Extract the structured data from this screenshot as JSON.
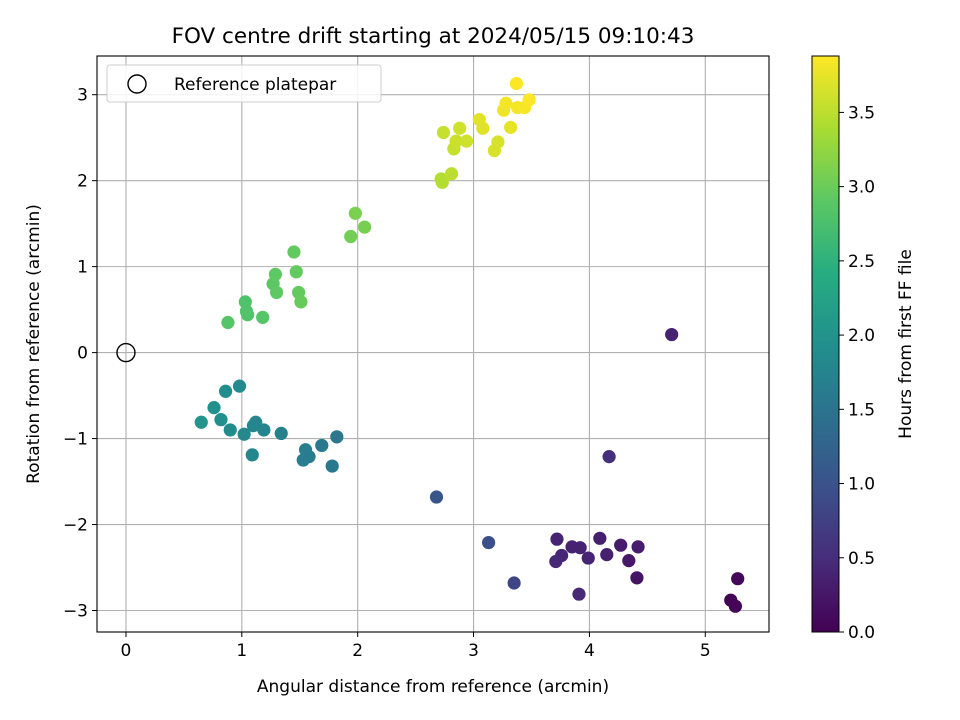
{
  "chart_data": {
    "type": "scatter",
    "title": "FOV centre drift starting at 2024/05/15 09:10:43",
    "xlabel": "Angular distance from reference (arcmin)",
    "ylabel": "Rotation from reference (arcmin)",
    "xlim": [
      -0.25,
      5.55
    ],
    "ylim": [
      -3.25,
      3.45
    ],
    "xticks": [
      0,
      1,
      2,
      3,
      4,
      5
    ],
    "yticks": [
      -3,
      -2,
      -1,
      0,
      1,
      2,
      3
    ],
    "xtick_labels": [
      "0",
      "1",
      "2",
      "3",
      "4",
      "5"
    ],
    "ytick_labels": [
      "−3",
      "−2",
      "−1",
      "0",
      "1",
      "2",
      "3"
    ],
    "grid": true,
    "legend": {
      "position": "top-left",
      "entries": [
        {
          "label": "Reference platepar",
          "marker": "open-circle",
          "color": "#000000"
        }
      ]
    },
    "reference_point": {
      "x": 0,
      "y": 0
    },
    "colorbar": {
      "label": "Hours from first FF file",
      "colormap": "viridis",
      "min": 0.0,
      "max": 3.88,
      "ticks": [
        0.0,
        0.5,
        1.0,
        1.5,
        2.0,
        2.5,
        3.0,
        3.5
      ],
      "tick_labels": [
        "0.0",
        "0.5",
        "1.0",
        "1.5",
        "2.0",
        "2.5",
        "3.0",
        "3.5"
      ]
    },
    "points": [
      {
        "x": 5.22,
        "y": -2.88,
        "c": 0.03
      },
      {
        "x": 5.26,
        "y": -2.95,
        "c": 0.05
      },
      {
        "x": 5.28,
        "y": -2.63,
        "c": 0.07
      },
      {
        "x": 4.71,
        "y": 0.21,
        "c": 0.38
      },
      {
        "x": 4.42,
        "y": -2.26,
        "c": 0.3
      },
      {
        "x": 4.41,
        "y": -2.62,
        "c": 0.22
      },
      {
        "x": 4.34,
        "y": -2.42,
        "c": 0.26
      },
      {
        "x": 4.27,
        "y": -2.24,
        "c": 0.32
      },
      {
        "x": 4.17,
        "y": -1.21,
        "c": 0.52
      },
      {
        "x": 4.15,
        "y": -2.35,
        "c": 0.36
      },
      {
        "x": 4.09,
        "y": -2.16,
        "c": 0.35
      },
      {
        "x": 3.99,
        "y": -2.39,
        "c": 0.4
      },
      {
        "x": 3.92,
        "y": -2.27,
        "c": 0.4
      },
      {
        "x": 3.85,
        "y": -2.26,
        "c": 0.38
      },
      {
        "x": 3.91,
        "y": -2.81,
        "c": 0.45
      },
      {
        "x": 3.76,
        "y": -2.36,
        "c": 0.42
      },
      {
        "x": 3.72,
        "y": -2.17,
        "c": 0.4
      },
      {
        "x": 3.71,
        "y": -2.43,
        "c": 0.45
      },
      {
        "x": 3.35,
        "y": -2.68,
        "c": 0.82
      },
      {
        "x": 3.13,
        "y": -2.21,
        "c": 0.95
      },
      {
        "x": 2.68,
        "y": -1.68,
        "c": 1.05
      },
      {
        "x": 1.82,
        "y": -0.98,
        "c": 1.55
      },
      {
        "x": 1.78,
        "y": -1.32,
        "c": 1.58
      },
      {
        "x": 1.69,
        "y": -1.08,
        "c": 1.6
      },
      {
        "x": 1.58,
        "y": -1.21,
        "c": 1.62
      },
      {
        "x": 1.55,
        "y": -1.13,
        "c": 1.65
      },
      {
        "x": 1.53,
        "y": -1.25,
        "c": 1.64
      },
      {
        "x": 1.34,
        "y": -0.94,
        "c": 1.7
      },
      {
        "x": 1.19,
        "y": -0.9,
        "c": 1.75
      },
      {
        "x": 1.12,
        "y": -0.81,
        "c": 1.78
      },
      {
        "x": 1.1,
        "y": -0.85,
        "c": 1.8
      },
      {
        "x": 1.09,
        "y": -1.19,
        "c": 1.8
      },
      {
        "x": 1.02,
        "y": -0.95,
        "c": 1.82
      },
      {
        "x": 0.98,
        "y": -0.39,
        "c": 1.85
      },
      {
        "x": 0.9,
        "y": -0.9,
        "c": 1.88
      },
      {
        "x": 0.86,
        "y": -0.45,
        "c": 1.9
      },
      {
        "x": 0.82,
        "y": -0.78,
        "c": 1.92
      },
      {
        "x": 0.76,
        "y": -0.64,
        "c": 1.95
      },
      {
        "x": 0.65,
        "y": -0.81,
        "c": 2.0
      },
      {
        "x": 0.88,
        "y": 0.35,
        "c": 2.85
      },
      {
        "x": 1.03,
        "y": 0.59,
        "c": 2.8
      },
      {
        "x": 1.04,
        "y": 0.48,
        "c": 2.8
      },
      {
        "x": 1.05,
        "y": 0.44,
        "c": 2.82
      },
      {
        "x": 1.18,
        "y": 0.41,
        "c": 2.85
      },
      {
        "x": 1.27,
        "y": 0.8,
        "c": 2.9
      },
      {
        "x": 1.29,
        "y": 0.91,
        "c": 2.92
      },
      {
        "x": 1.3,
        "y": 0.7,
        "c": 2.92
      },
      {
        "x": 1.45,
        "y": 1.17,
        "c": 2.95
      },
      {
        "x": 1.47,
        "y": 0.94,
        "c": 2.95
      },
      {
        "x": 1.49,
        "y": 0.7,
        "c": 2.95
      },
      {
        "x": 1.51,
        "y": 0.59,
        "c": 2.98
      },
      {
        "x": 1.94,
        "y": 1.35,
        "c": 3.05
      },
      {
        "x": 1.98,
        "y": 1.62,
        "c": 3.1
      },
      {
        "x": 2.06,
        "y": 1.46,
        "c": 3.08
      },
      {
        "x": 2.72,
        "y": 2.02,
        "c": 3.45
      },
      {
        "x": 2.73,
        "y": 1.98,
        "c": 3.45
      },
      {
        "x": 2.74,
        "y": 2.56,
        "c": 3.55
      },
      {
        "x": 2.81,
        "y": 2.08,
        "c": 3.5
      },
      {
        "x": 2.83,
        "y": 2.37,
        "c": 3.55
      },
      {
        "x": 2.85,
        "y": 2.46,
        "c": 3.58
      },
      {
        "x": 2.88,
        "y": 2.61,
        "c": 3.6
      },
      {
        "x": 2.94,
        "y": 2.46,
        "c": 3.6
      },
      {
        "x": 3.05,
        "y": 2.71,
        "c": 3.72
      },
      {
        "x": 3.08,
        "y": 2.61,
        "c": 3.7
      },
      {
        "x": 3.18,
        "y": 2.35,
        "c": 3.65
      },
      {
        "x": 3.21,
        "y": 2.45,
        "c": 3.65
      },
      {
        "x": 3.26,
        "y": 2.82,
        "c": 3.8
      },
      {
        "x": 3.28,
        "y": 2.9,
        "c": 3.82
      },
      {
        "x": 3.32,
        "y": 2.62,
        "c": 3.75
      },
      {
        "x": 3.37,
        "y": 3.13,
        "c": 3.88
      },
      {
        "x": 3.38,
        "y": 2.85,
        "c": 3.82
      },
      {
        "x": 3.44,
        "y": 2.85,
        "c": 3.84
      },
      {
        "x": 3.48,
        "y": 2.94,
        "c": 3.86
      }
    ]
  }
}
